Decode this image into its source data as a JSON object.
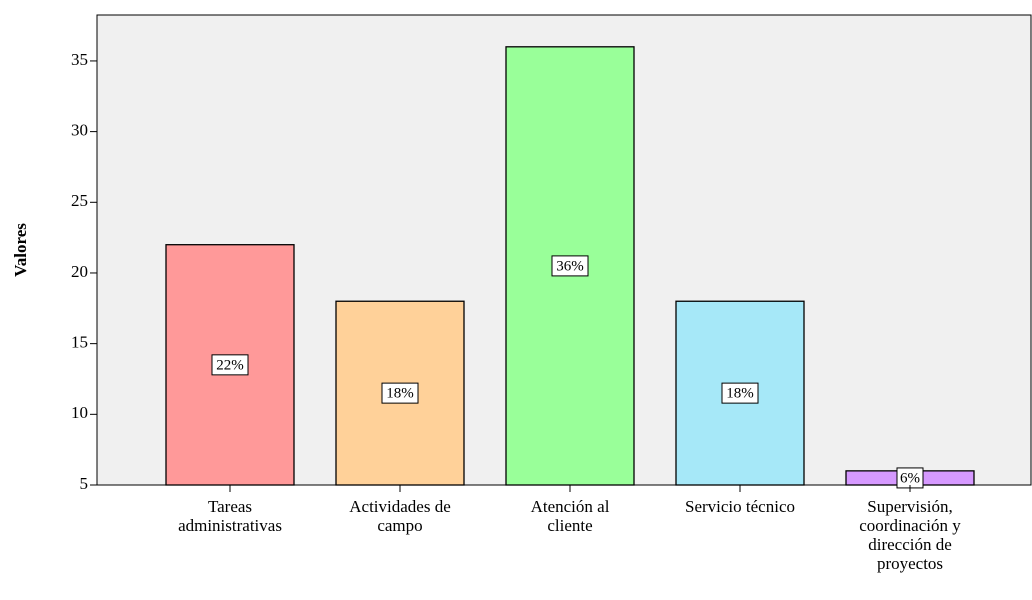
{
  "chart_data": {
    "type": "bar",
    "y_label": "Valores",
    "categories": [
      [
        "Tareas",
        "administrativas"
      ],
      [
        "Actividades de",
        "campo"
      ],
      [
        "Atención al",
        "cliente"
      ],
      [
        "Servicio técnico"
      ],
      [
        "Supervisión,",
        "coordinación y",
        "dirección de",
        "proyectos"
      ]
    ],
    "values": [
      22,
      18,
      36,
      18,
      6
    ],
    "value_labels": [
      "22%",
      "18%",
      "36%",
      "18%",
      "6%"
    ],
    "colors": [
      "#ff9999",
      "#ffd199",
      "#99ff99",
      "#a6e8f8",
      "#d699ff"
    ],
    "ylim": [
      5,
      38.25
    ],
    "yticks": [
      5,
      10,
      15,
      20,
      25,
      30,
      35
    ],
    "grid": false
  }
}
